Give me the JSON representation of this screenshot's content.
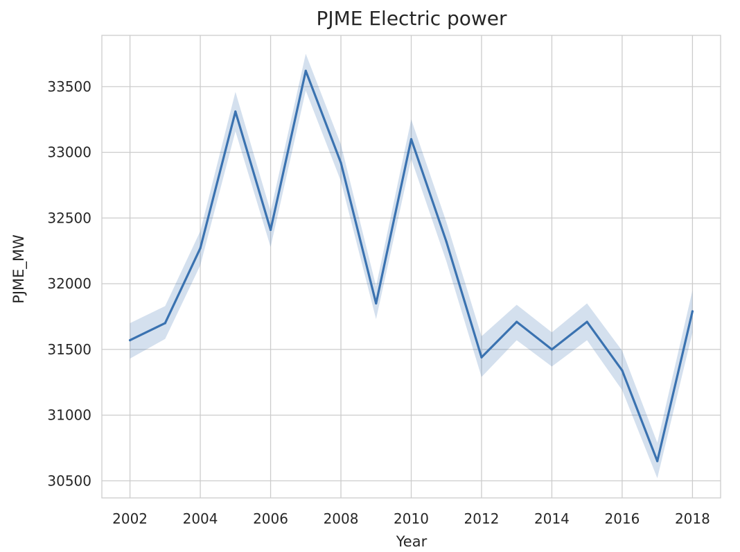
{
  "chart_data": {
    "type": "line",
    "title": "PJME Electric power",
    "xlabel": "Year",
    "ylabel": "PJME_MW",
    "x": [
      2002,
      2003,
      2004,
      2005,
      2006,
      2007,
      2008,
      2009,
      2010,
      2011,
      2012,
      2013,
      2014,
      2015,
      2016,
      2017,
      2018
    ],
    "series": [
      {
        "values": [
          31570,
          31700,
          32270,
          33310,
          32410,
          33620,
          32920,
          31850,
          33100,
          32320,
          31440,
          31710,
          31500,
          31710,
          31340,
          30650,
          31790
        ],
        "ci_lower": [
          31430,
          31580,
          32140,
          33160,
          32280,
          33470,
          32780,
          31730,
          32950,
          32170,
          31290,
          31570,
          31370,
          31570,
          31190,
          30520,
          31630
        ],
        "ci_upper": [
          31700,
          31830,
          32400,
          33460,
          32550,
          33750,
          33060,
          31980,
          33250,
          32470,
          31600,
          31840,
          31630,
          31850,
          31490,
          30790,
          31950
        ]
      }
    ],
    "xticks": [
      2002,
      2004,
      2006,
      2008,
      2010,
      2012,
      2014,
      2016,
      2018
    ],
    "yticks": [
      30500,
      31000,
      31500,
      32000,
      32500,
      33000,
      33500
    ],
    "xlim": [
      2001.2,
      2018.8
    ],
    "ylim": [
      30370,
      33890
    ],
    "grid": true,
    "colors": {
      "line": "#3a72b0",
      "band": "#3a72b0",
      "grid": "#cccccc",
      "frame": "#cccccc"
    }
  }
}
